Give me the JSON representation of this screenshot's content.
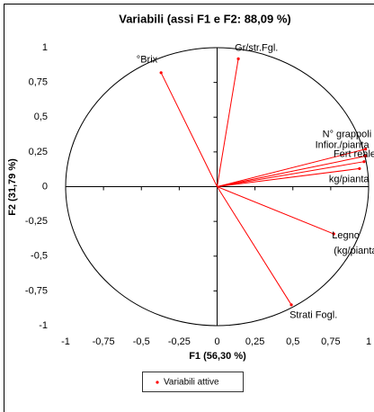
{
  "chart_data": {
    "type": "scatter",
    "title": "Variabili (assi F1 e F2: 88,09 %)",
    "x_label": "F1 (56,30 %)",
    "y_label": "F2 (31,79 %)",
    "color": "#ff0000",
    "legend": "Variabili attive",
    "legend_position": "bottom",
    "xlim": [
      -1,
      1
    ],
    "ylim": [
      -1,
      1
    ],
    "xticks": [
      -1,
      {
        "value": -0.75,
        "label": "-0,75"
      },
      {
        "value": -0.5,
        "label": "-0,5"
      },
      {
        "value": -0.25,
        "label": "-0,25"
      },
      0,
      {
        "value": 0.25,
        "label": "0,25"
      },
      {
        "value": 0.5,
        "label": "0,5"
      },
      {
        "value": 0.75,
        "label": "0,75"
      },
      1
    ],
    "yticks": [
      -1,
      {
        "value": -0.75,
        "label": "-0,75"
      },
      {
        "value": -0.5,
        "label": "-0,5"
      },
      {
        "value": -0.25,
        "label": "-0,25"
      },
      0,
      {
        "value": 0.25,
        "label": "0,25"
      },
      {
        "value": 0.5,
        "label": "0,5"
      },
      {
        "value": 0.75,
        "label": "0,75"
      },
      1
    ],
    "points": [
      {
        "label": [
          "°Brix"
        ],
        "x": -0.37,
        "y": 0.82
      },
      {
        "label": [
          "Gr/str.Fgl."
        ],
        "x": 0.14,
        "y": 0.92
      },
      {
        "label": [
          "N° grappoli"
        ],
        "x": 0.98,
        "y": 0.27
      },
      {
        "label": [
          "Infior./pianta"
        ],
        "x": 0.98,
        "y": 0.22
      },
      {
        "label": [
          "Fert reale"
        ],
        "x": 0.97,
        "y": 0.18
      },
      {
        "label": [
          "kg/pianta"
        ],
        "x": 0.94,
        "y": 0.13
      },
      {
        "label": [
          "Legno",
          "(kg/pianta)"
        ],
        "x": 0.77,
        "y": -0.34
      },
      {
        "label": [
          "Strati Fogl."
        ],
        "x": 0.49,
        "y": -0.85
      }
    ]
  }
}
